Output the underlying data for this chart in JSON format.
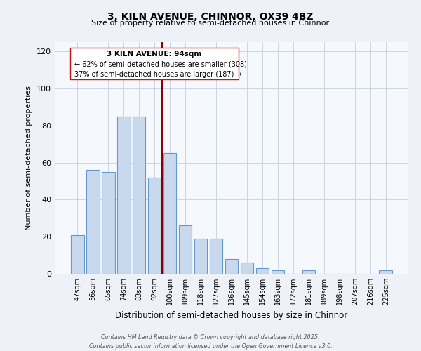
{
  "title": "3, KILN AVENUE, CHINNOR, OX39 4BZ",
  "subtitle": "Size of property relative to semi-detached houses in Chinnor",
  "xlabel": "Distribution of semi-detached houses by size in Chinnor",
  "ylabel": "Number of semi-detached properties",
  "categories": [
    "47sqm",
    "56sqm",
    "65sqm",
    "74sqm",
    "83sqm",
    "92sqm",
    "100sqm",
    "109sqm",
    "118sqm",
    "127sqm",
    "136sqm",
    "145sqm",
    "154sqm",
    "163sqm",
    "172sqm",
    "181sqm",
    "189sqm",
    "198sqm",
    "207sqm",
    "216sqm",
    "225sqm"
  ],
  "values": [
    21,
    56,
    55,
    85,
    85,
    52,
    65,
    26,
    19,
    19,
    8,
    6,
    3,
    2,
    0,
    2,
    0,
    0,
    0,
    0,
    2
  ],
  "bar_color": "#c8d9ee",
  "bar_edge_color": "#6699cc",
  "marker_index": 5.5,
  "marker_color": "#8b0000",
  "ylim": [
    0,
    125
  ],
  "yticks": [
    0,
    20,
    40,
    60,
    80,
    100,
    120
  ],
  "annotation_title": "3 KILN AVENUE: 94sqm",
  "annotation_line1": "← 62% of semi-detached houses are smaller (308)",
  "annotation_line2": "37% of semi-detached houses are larger (187) →",
  "footer_line1": "Contains HM Land Registry data © Crown copyright and database right 2025.",
  "footer_line2": "Contains public sector information licensed under the Open Government Licence v3.0.",
  "bg_color": "#eef2f8",
  "plot_bg_color": "#f5f8fd",
  "grid_color": "#c8d0dc"
}
